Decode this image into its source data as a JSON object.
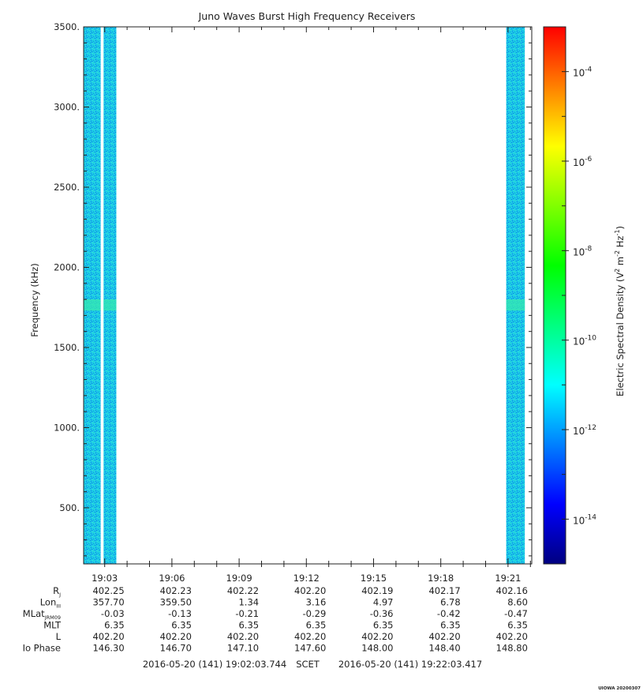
{
  "chart_data": {
    "type": "heatmap",
    "title": "Juno Waves Burst High Frequency Receivers",
    "ylabel": "Frequency (kHz)",
    "ylim": [
      150,
      3500
    ],
    "y_ticks": [
      500,
      1000,
      1500,
      2000,
      2500,
      3000,
      3500
    ],
    "y_tick_labels": [
      "500.",
      "1000.",
      "1500.",
      "2000.",
      "2500.",
      "3000.",
      "3500."
    ],
    "y_minor_step": 100,
    "x_start": "19:02:03.744",
    "x_end": "19:22:03.417",
    "x_start_min": 1142.06,
    "x_end_min": 1162.06,
    "x_ticks_min": [
      1143,
      1146,
      1149,
      1152,
      1155,
      1158,
      1161
    ],
    "x_tick_labels": [
      "19:03",
      "19:06",
      "19:09",
      "19:12",
      "19:15",
      "19:18",
      "19:21"
    ],
    "x_minor_step_min": 1,
    "data_segments": [
      {
        "start_min": 1142.06,
        "end_min": 1142.82
      },
      {
        "start_min": 1142.95,
        "end_min": 1143.52
      },
      {
        "start_min": 1160.92,
        "end_min": 1161.75
      }
    ],
    "enhanced_band_khz": [
      1730,
      1800
    ],
    "colorbar": {
      "label": "Electric Spectral Density",
      "unit_base": "(V",
      "unit_sup1": "2",
      "unit_mid": " m",
      "unit_sup2": "-2",
      "unit_hz": " Hz",
      "unit_sup3": "-1",
      "unit_end": ")",
      "log_min": -15,
      "log_max": -3,
      "ticks": [
        -14,
        -12,
        -10,
        -8,
        -6,
        -4
      ],
      "tick_base": "10",
      "colors": [
        "#000080",
        "#0000ff",
        "#0080ff",
        "#00ffff",
        "#00ff80",
        "#00ff00",
        "#80ff00",
        "#ffff00",
        "#ff8000",
        "#ff0000"
      ]
    },
    "ephemeris": {
      "rows": [
        {
          "label": "R",
          "sub": "J",
          "values": [
            "402.25",
            "402.23",
            "402.22",
            "402.20",
            "402.19",
            "402.17",
            "402.16"
          ]
        },
        {
          "label": "Lon",
          "sub": "III",
          "values": [
            "357.70",
            "359.50",
            "1.34",
            "3.16",
            "4.97",
            "6.78",
            "8.60"
          ]
        },
        {
          "label": "MLat",
          "sub": "JRM09",
          "values": [
            "-0.03",
            "-0.13",
            "-0.21",
            "-0.29",
            "-0.36",
            "-0.42",
            "-0.47"
          ]
        },
        {
          "label": "MLT",
          "sub": "",
          "values": [
            "6.35",
            "6.35",
            "6.35",
            "6.35",
            "6.35",
            "6.35",
            "6.35"
          ]
        },
        {
          "label": "L",
          "sub": "",
          "values": [
            "402.20",
            "402.20",
            "402.20",
            "402.20",
            "402.20",
            "402.20",
            "402.20"
          ]
        },
        {
          "label": "Io Phase",
          "sub": "",
          "values": [
            "146.30",
            "146.70",
            "147.10",
            "147.60",
            "148.00",
            "148.40",
            "148.80"
          ]
        }
      ]
    },
    "time_range_start": "2016-05-20 (141) 19:02:03.744",
    "time_range_label": "SCET",
    "time_range_end": "2016-05-20 (141) 19:22:03.417",
    "footer_stamp": "UIOWA 20200307"
  }
}
